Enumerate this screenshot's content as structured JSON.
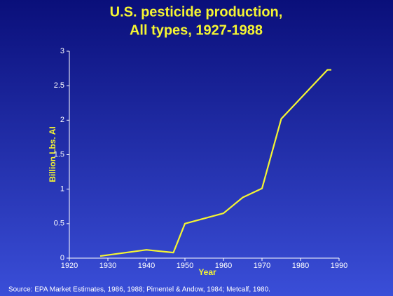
{
  "chart_data": {
    "type": "line",
    "title": "U.S. pesticide production,",
    "subtitle": "All types, 1927-1988",
    "x_label": "Year",
    "y_label": "Billion Lbs. AI",
    "source": "Source: EPA Market Estimates, 1986, 1988; Pimentel & Andow, 1984; Metcalf, 1980.",
    "x": [
      1928,
      1940,
      1947,
      1950,
      1960,
      1965,
      1970,
      1975,
      1987,
      1988
    ],
    "series": [
      {
        "color": "#f5f532",
        "values": [
          0.03,
          0.12,
          0.08,
          0.5,
          0.65,
          0.88,
          1.01,
          2.02,
          2.73,
          2.73
        ]
      }
    ],
    "xlim": [
      1920,
      1990
    ],
    "xticks": [
      1920,
      1930,
      1940,
      1950,
      1960,
      1970,
      1980,
      1990
    ],
    "ylim": [
      0,
      3
    ],
    "yticks": [
      0,
      0.5,
      1,
      1.5,
      2,
      2.5,
      3
    ],
    "grid": false
  }
}
